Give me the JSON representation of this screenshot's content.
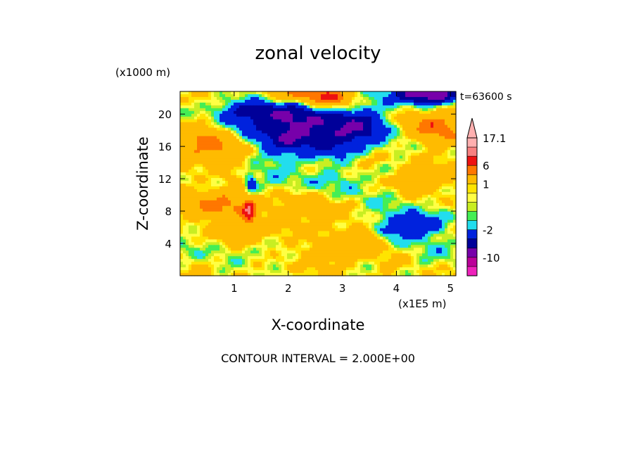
{
  "chart_data": {
    "type": "heatmap",
    "title": "zonal velocity",
    "xlabel": "X-coordinate",
    "ylabel": "Z-coordinate",
    "x_unit_label": "(x1E5 m)",
    "y_unit_label": "(x1000 m)",
    "time_label": "t=63600 s",
    "footer": "CONTOUR INTERVAL = 2.000E+00",
    "xlim": [
      0,
      5.1
    ],
    "ylim": [
      0,
      22.8
    ],
    "xticks": [
      "1",
      "2",
      "3",
      "4",
      "5"
    ],
    "yticks": [
      "4",
      "8",
      "12",
      "16",
      "20"
    ],
    "colorbar": {
      "labels": [
        "17.1",
        "6",
        "1",
        "-2",
        "-10"
      ],
      "levels": [
        {
          "min": 12,
          "max": 17.1,
          "color": "#ffb0b0"
        },
        {
          "min": 8,
          "max": 12,
          "color": "#f88080"
        },
        {
          "min": 6,
          "max": 8,
          "color": "#ee1111"
        },
        {
          "min": 4,
          "max": 6,
          "color": "#ff7700"
        },
        {
          "min": 1,
          "max": 4,
          "color": "#ffbb00"
        },
        {
          "min": 0.5,
          "max": 1,
          "color": "#ffe400"
        },
        {
          "min": 0,
          "max": 0.5,
          "color": "#ffff44"
        },
        {
          "min": -0.5,
          "max": 0,
          "color": "#c8ee22"
        },
        {
          "min": -1,
          "max": -0.5,
          "color": "#44ee55"
        },
        {
          "min": -2,
          "max": -1,
          "color": "#22ddee"
        },
        {
          "min": -4,
          "max": -2,
          "color": "#0022dd"
        },
        {
          "min": -6,
          "max": -4,
          "color": "#000099"
        },
        {
          "min": -10,
          "max": -6,
          "color": "#7700aa"
        },
        {
          "min": -14,
          "max": -10,
          "color": "#bb0099"
        },
        {
          "min": -20,
          "max": -14,
          "color": "#ee22bb"
        }
      ]
    },
    "field_features": [
      {
        "x": 2.3,
        "y": 18.0,
        "sx": 0.9,
        "sy": 2.5,
        "value": -7
      },
      {
        "x": 1.55,
        "y": 20.5,
        "sx": 0.6,
        "sy": 1.0,
        "value": -4
      },
      {
        "x": 3.6,
        "y": 18.5,
        "sx": 0.5,
        "sy": 1.5,
        "value": -3
      },
      {
        "x": 4.6,
        "y": 22.5,
        "sx": 0.5,
        "sy": 0.9,
        "value": -9
      },
      {
        "x": 2.3,
        "y": 22.3,
        "sx": 0.5,
        "sy": 1.2,
        "value": 5
      },
      {
        "x": 2.8,
        "y": 21.8,
        "sx": 0.3,
        "sy": 0.8,
        "value": 4
      },
      {
        "x": 4.6,
        "y": 18.5,
        "sx": 0.5,
        "sy": 1.4,
        "value": 5
      },
      {
        "x": 0.45,
        "y": 16.5,
        "sx": 0.35,
        "sy": 1.4,
        "value": 4
      },
      {
        "x": 0.9,
        "y": 15.5,
        "sx": 0.3,
        "sy": 1.5,
        "value": 3
      },
      {
        "x": 1.3,
        "y": 11.0,
        "sx": 0.08,
        "sy": 1.2,
        "value": -5
      },
      {
        "x": 1.28,
        "y": 8.5,
        "sx": 0.08,
        "sy": 1.5,
        "value": 6
      },
      {
        "x": 0.9,
        "y": 8.5,
        "sx": 0.4,
        "sy": 1.5,
        "value": 3
      },
      {
        "x": 0.3,
        "y": 9.0,
        "sx": 0.3,
        "sy": 1.2,
        "value": 2
      },
      {
        "x": 2.4,
        "y": 8.0,
        "sx": 0.5,
        "sy": 1.5,
        "value": 2
      },
      {
        "x": 2.2,
        "y": 11.5,
        "sx": 0.6,
        "sy": 1.0,
        "value": -1.5
      },
      {
        "x": 3.25,
        "y": 11.0,
        "sx": 0.3,
        "sy": 2.0,
        "value": -1.5
      },
      {
        "x": 3.8,
        "y": 13.0,
        "sx": 0.3,
        "sy": 1.2,
        "value": -1.5
      },
      {
        "x": 4.1,
        "y": 5.5,
        "sx": 0.25,
        "sy": 1.0,
        "value": -3
      },
      {
        "x": 4.5,
        "y": 6.5,
        "sx": 0.3,
        "sy": 1.2,
        "value": -2.5
      },
      {
        "x": 4.0,
        "y": 7.0,
        "sx": 0.5,
        "sy": 2.0,
        "value": -1.5
      },
      {
        "x": 3.4,
        "y": 4.5,
        "sx": 0.2,
        "sy": 1.0,
        "value": 4
      },
      {
        "x": 4.4,
        "y": 12.0,
        "sx": 0.5,
        "sy": 1.0,
        "value": 3
      },
      {
        "x": 3.5,
        "y": 14.0,
        "sx": 0.4,
        "sy": 0.8,
        "value": 2
      },
      {
        "x": 0.5,
        "y": 3.5,
        "sx": 0.4,
        "sy": 1.2,
        "value": -1.5
      },
      {
        "x": 1.6,
        "y": 3.0,
        "sx": 0.3,
        "sy": 1.5,
        "value": -1.5
      },
      {
        "x": 4.9,
        "y": 3.0,
        "sx": 0.3,
        "sy": 1.5,
        "value": -1.5
      },
      {
        "x": 2.7,
        "y": 3.0,
        "sx": 0.5,
        "sy": 1.2,
        "value": 2
      },
      {
        "x": 1.2,
        "y": 5.0,
        "sx": 0.3,
        "sy": 1.0,
        "value": 3
      }
    ]
  }
}
